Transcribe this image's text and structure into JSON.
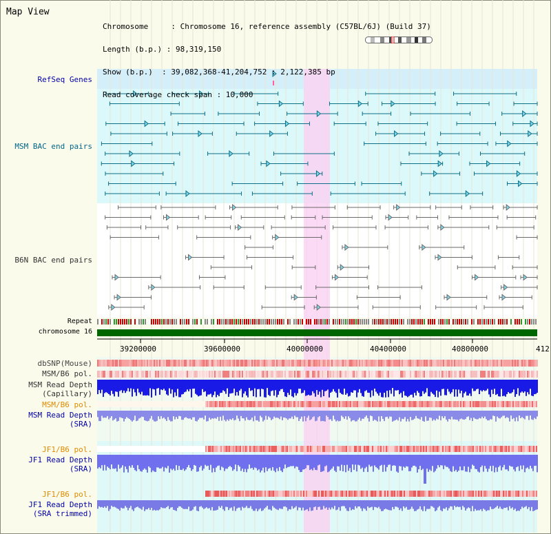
{
  "title": "Map View",
  "info": {
    "chromosome": "Chromosome     : Chromosome 16, reference assembly (C57BL/6J) (Build 37)",
    "length": "Length (b.p.) : 98,319,150",
    "show": "Show (b.p.)  : 39,082,368-41,204,752 : 2,122,385 bp",
    "coverage": "Read coverage check span : 10,000"
  },
  "tracks": {
    "refseq": "RefSeq Genes",
    "msm_bac": "MSM BAC end pairs",
    "b6n_bac": "B6N BAC end pairs",
    "repeat": "Repeat",
    "chromosome": "chromosome 16",
    "dbsnp": "dbSNP(Mouse)",
    "msm_b6_pol_1": "MSM/B6 pol.",
    "msm_depth_cap_1": "MSM Read Depth",
    "msm_depth_cap_2": "(Capillary)",
    "msm_b6_pol_2": "MSM/B6 pol.",
    "msm_depth_sra_1": "MSM Read Depth",
    "msm_depth_sra_2": "(SRA)",
    "jf1_b6_pol_1": "JF1/B6 pol.",
    "jf1_depth_sra_1": "JF1 Read Depth",
    "jf1_depth_sra_2": "(SRA)",
    "jf1_b6_pol_2": "JF1/B6 pol.",
    "jf1_depth_trim_1": "JF1 Read Depth",
    "jf1_depth_trim_2": "(SRA trimmed)"
  },
  "axis": {
    "ticks": [
      "39200000",
      "39600000",
      "40000000",
      "40400000",
      "40800000",
      "412"
    ]
  },
  "colors": {
    "background": "#fbfbec",
    "highlight": "#f9d3f2",
    "refseq_band": "#d4eefa",
    "bac_band": "#dbf9fa",
    "refseq_line": "#0c6f86",
    "b6n_line": "#6a6a6a",
    "chromosome_bar": "#006600",
    "label_dark": "#333333",
    "label_blue": "#0000aa",
    "label_teal": "#006688",
    "label_orange": "#e08a00"
  }
}
